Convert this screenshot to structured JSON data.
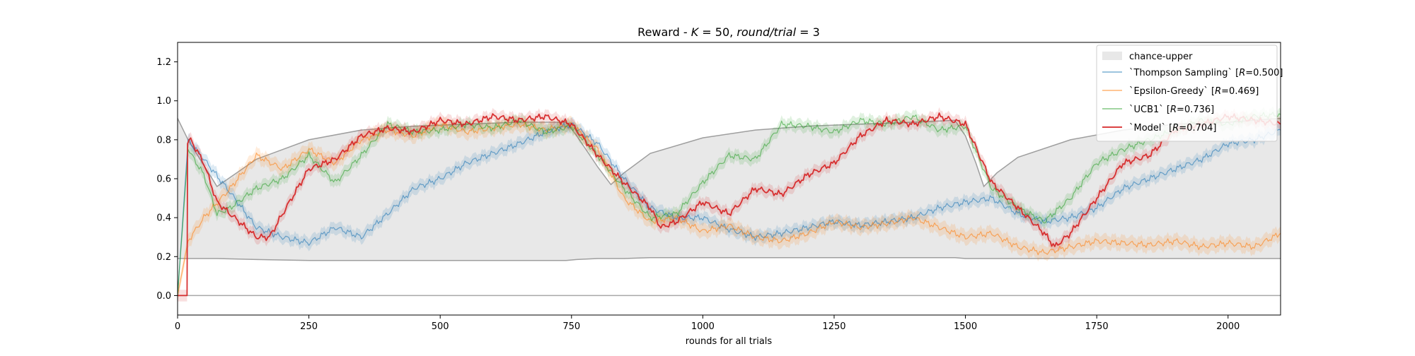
{
  "chart_data": {
    "type": "line",
    "title": "Reward - K = 50, round/trial = 3",
    "title_parts": {
      "prefix": "Reward - ",
      "k_var": "K",
      "k_eq": " = 50, ",
      "rt_var": "round/trial",
      "rt_eq": " = 3"
    },
    "xlabel": "rounds for all trials",
    "ylabel": "",
    "xlim": [
      0,
      2100
    ],
    "ylim": [
      -0.1,
      1.3
    ],
    "xticks": [
      0,
      250,
      500,
      750,
      1000,
      1250,
      1500,
      1750,
      2000
    ],
    "yticks": [
      0.0,
      0.2,
      0.4,
      0.6,
      0.8,
      1.0,
      1.2
    ],
    "xtick_labels": [
      "0",
      "250",
      "500",
      "750",
      "1000",
      "1250",
      "1500",
      "1750",
      "2000"
    ],
    "ytick_labels": [
      "0.0",
      "0.2",
      "0.4",
      "0.6",
      "0.8",
      "1.0",
      "1.2"
    ],
    "grid": false,
    "legend_position": "top-right",
    "zero_line": 0.0,
    "chance_band": {
      "name": "chance-upper",
      "color": "#e8e8e8",
      "line_color": "#9e9e9e",
      "x": [
        0,
        20,
        75,
        150,
        250,
        350,
        450,
        550,
        650,
        740,
        760,
        800,
        825,
        850,
        900,
        1000,
        1100,
        1200,
        1300,
        1400,
        1480,
        1500,
        1520,
        1535,
        1560,
        1600,
        1700,
        1800,
        1900,
        2000,
        2100
      ],
      "lower": [
        0.19,
        0.19,
        0.19,
        0.185,
        0.18,
        0.18,
        0.18,
        0.18,
        0.18,
        0.18,
        0.185,
        0.19,
        0.19,
        0.19,
        0.195,
        0.195,
        0.195,
        0.195,
        0.195,
        0.195,
        0.195,
        0.19,
        0.19,
        0.19,
        0.19,
        0.19,
        0.19,
        0.19,
        0.19,
        0.19,
        0.19
      ],
      "upper": [
        0.91,
        0.8,
        0.56,
        0.7,
        0.8,
        0.85,
        0.87,
        0.88,
        0.89,
        0.89,
        0.82,
        0.66,
        0.57,
        0.63,
        0.73,
        0.81,
        0.85,
        0.87,
        0.88,
        0.89,
        0.9,
        0.82,
        0.68,
        0.56,
        0.63,
        0.71,
        0.8,
        0.85,
        0.88,
        0.89,
        0.91
      ]
    },
    "series": [
      {
        "name": "`Thompson Sampling` [R=0.500]",
        "legend_prefix": "`Thompson Sampling` [",
        "legend_var": "R",
        "legend_suffix": "=0.500]",
        "color": "#1f77b4",
        "band": 0.03,
        "x": [
          0,
          20,
          50,
          100,
          150,
          200,
          250,
          300,
          350,
          400,
          450,
          500,
          550,
          600,
          650,
          700,
          750,
          800,
          850,
          900,
          950,
          1000,
          1050,
          1100,
          1150,
          1200,
          1250,
          1300,
          1350,
          1400,
          1450,
          1500,
          1550,
          1600,
          1650,
          1700,
          1750,
          1800,
          1850,
          1900,
          1950,
          2000,
          2050,
          2100
        ],
        "y": [
          0.0,
          0.8,
          0.7,
          0.53,
          0.35,
          0.3,
          0.27,
          0.35,
          0.3,
          0.42,
          0.55,
          0.6,
          0.68,
          0.73,
          0.78,
          0.84,
          0.88,
          0.78,
          0.6,
          0.45,
          0.4,
          0.4,
          0.34,
          0.3,
          0.32,
          0.35,
          0.38,
          0.36,
          0.38,
          0.4,
          0.45,
          0.48,
          0.5,
          0.42,
          0.38,
          0.4,
          0.45,
          0.55,
          0.6,
          0.65,
          0.7,
          0.78,
          0.8,
          0.85
        ]
      },
      {
        "name": "`Epsilon-Greedy` [R=0.469]",
        "legend_prefix": "`Epsilon-Greedy` [",
        "legend_var": "R",
        "legend_suffix": "=0.469]",
        "color": "#ff7f0e",
        "band": 0.035,
        "x": [
          0,
          20,
          50,
          100,
          150,
          200,
          250,
          300,
          350,
          400,
          450,
          500,
          550,
          600,
          650,
          700,
          750,
          800,
          850,
          900,
          950,
          1000,
          1050,
          1100,
          1150,
          1200,
          1250,
          1300,
          1350,
          1400,
          1450,
          1500,
          1550,
          1600,
          1650,
          1700,
          1750,
          1800,
          1850,
          1900,
          1950,
          2000,
          2050,
          2100
        ],
        "y": [
          0.0,
          0.28,
          0.4,
          0.55,
          0.72,
          0.65,
          0.75,
          0.68,
          0.8,
          0.85,
          0.82,
          0.88,
          0.84,
          0.86,
          0.88,
          0.85,
          0.88,
          0.75,
          0.5,
          0.38,
          0.4,
          0.33,
          0.36,
          0.3,
          0.28,
          0.32,
          0.38,
          0.35,
          0.37,
          0.4,
          0.35,
          0.3,
          0.32,
          0.25,
          0.22,
          0.25,
          0.28,
          0.27,
          0.26,
          0.28,
          0.25,
          0.27,
          0.25,
          0.32
        ]
      },
      {
        "name": "`UCB1` [R=0.736]",
        "legend_prefix": "`UCB1` [",
        "legend_var": "R",
        "legend_suffix": "=0.736]",
        "color": "#2ca02c",
        "band": 0.03,
        "x": [
          0,
          20,
          50,
          75,
          100,
          150,
          200,
          250,
          300,
          350,
          400,
          450,
          500,
          550,
          600,
          650,
          700,
          750,
          800,
          850,
          900,
          950,
          1000,
          1050,
          1100,
          1150,
          1200,
          1250,
          1300,
          1350,
          1400,
          1450,
          1500,
          1550,
          1600,
          1650,
          1700,
          1750,
          1800,
          1850,
          1900,
          1950,
          2000,
          2050,
          2100
        ],
        "y": [
          0.0,
          0.75,
          0.62,
          0.42,
          0.45,
          0.55,
          0.6,
          0.72,
          0.58,
          0.72,
          0.88,
          0.84,
          0.85,
          0.88,
          0.86,
          0.9,
          0.84,
          0.87,
          0.72,
          0.55,
          0.4,
          0.42,
          0.58,
          0.72,
          0.7,
          0.88,
          0.87,
          0.84,
          0.9,
          0.88,
          0.92,
          0.85,
          0.87,
          0.55,
          0.45,
          0.38,
          0.5,
          0.68,
          0.75,
          0.8,
          0.85,
          0.9,
          0.88,
          0.92,
          0.93
        ]
      },
      {
        "name": "`Model` [R=0.704]",
        "legend_prefix": "`Model` [",
        "legend_var": "R",
        "legend_suffix": "=0.704]",
        "color": "#d62728",
        "band": 0.03,
        "x": [
          0,
          18,
          19,
          25,
          50,
          75,
          100,
          150,
          175,
          200,
          250,
          300,
          350,
          400,
          450,
          500,
          550,
          600,
          650,
          700,
          750,
          800,
          850,
          900,
          920,
          950,
          1000,
          1050,
          1100,
          1150,
          1200,
          1250,
          1300,
          1350,
          1400,
          1450,
          1500,
          1550,
          1600,
          1650,
          1670,
          1700,
          1750,
          1800,
          1850,
          1900,
          1950,
          2000,
          2050,
          2100
        ],
        "y": [
          0.0,
          0.0,
          0.78,
          0.8,
          0.68,
          0.48,
          0.42,
          0.3,
          0.3,
          0.42,
          0.65,
          0.7,
          0.82,
          0.86,
          0.84,
          0.9,
          0.88,
          0.92,
          0.9,
          0.92,
          0.88,
          0.72,
          0.58,
          0.45,
          0.35,
          0.38,
          0.48,
          0.42,
          0.55,
          0.52,
          0.62,
          0.68,
          0.82,
          0.9,
          0.88,
          0.92,
          0.88,
          0.58,
          0.45,
          0.32,
          0.25,
          0.32,
          0.5,
          0.68,
          0.72,
          0.85,
          0.88,
          0.92,
          0.9,
          0.88
        ]
      }
    ]
  }
}
